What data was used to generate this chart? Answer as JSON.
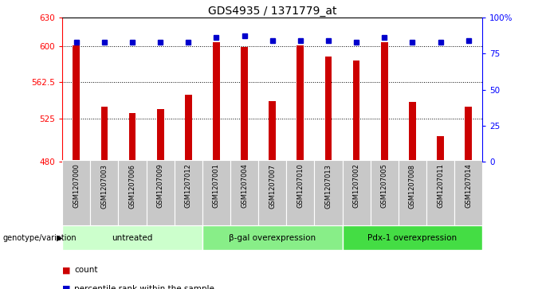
{
  "title": "GDS4935 / 1371779_at",
  "samples": [
    "GSM1207000",
    "GSM1207003",
    "GSM1207006",
    "GSM1207009",
    "GSM1207012",
    "GSM1207001",
    "GSM1207004",
    "GSM1207007",
    "GSM1207010",
    "GSM1207013",
    "GSM1207002",
    "GSM1207005",
    "GSM1207008",
    "GSM1207011",
    "GSM1207014"
  ],
  "bar_values": [
    601,
    537,
    531,
    535,
    550,
    604,
    599,
    543,
    601,
    589,
    585,
    604,
    542,
    507,
    537
  ],
  "percentile_values": [
    83,
    83,
    83,
    83,
    83,
    86,
    87,
    84,
    84,
    84,
    83,
    86,
    83,
    83,
    84
  ],
  "bar_color": "#cc0000",
  "dot_color": "#0000cc",
  "ylim_left": [
    480,
    630
  ],
  "ylim_right": [
    0,
    100
  ],
  "yticks_left": [
    480,
    525,
    562.5,
    600,
    630
  ],
  "ytick_labels_left": [
    "480",
    "525",
    "562.5",
    "600",
    "630"
  ],
  "yticks_right": [
    0,
    25,
    50,
    75,
    100
  ],
  "ytick_labels_right": [
    "0",
    "25",
    "50",
    "75",
    "100%"
  ],
  "groups": [
    {
      "label": "untreated",
      "start": 0,
      "end": 5,
      "color": "#ccffcc"
    },
    {
      "label": "β-gal overexpression",
      "start": 5,
      "end": 10,
      "color": "#88ee88"
    },
    {
      "label": "Pdx-1 overexpression",
      "start": 10,
      "end": 15,
      "color": "#44dd44"
    }
  ],
  "group_label": "genotype/variation",
  "legend_bar_label": "count",
  "legend_dot_label": "percentile rank within the sample",
  "background_color": "#ffffff",
  "plot_bg_color": "#ffffff",
  "title_fontsize": 10,
  "tick_fontsize": 7.5,
  "bar_width": 0.25
}
